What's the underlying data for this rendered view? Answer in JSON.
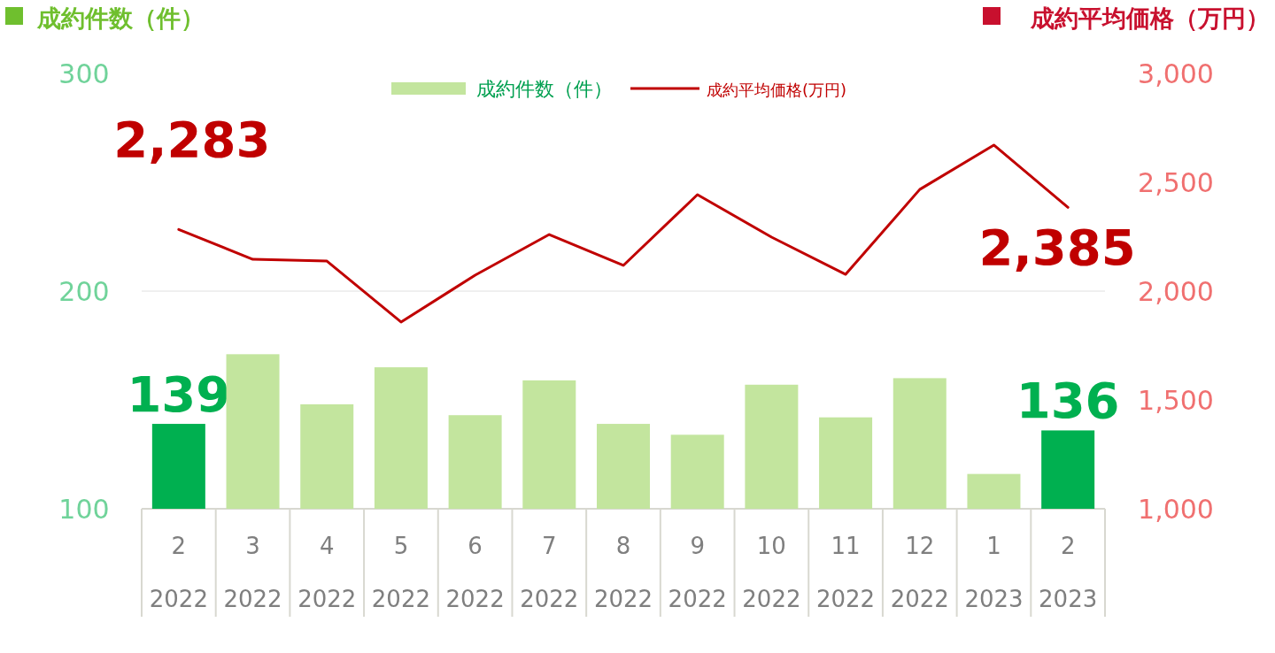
{
  "chart_data": {
    "type": "bar",
    "ylabel": "成約件数（件）",
    "y2label": "成約平均価格（万円）",
    "categories": [
      "2\n2022",
      "3\n2022",
      "4\n2022",
      "5\n2022",
      "6\n2022",
      "7\n2022",
      "8\n2022",
      "9\n2022",
      "10\n2022",
      "11\n2022",
      "12\n2022",
      "1\n2023",
      "2\n2023"
    ],
    "series": [
      {
        "name": "成約件数（件）",
        "color": "#c3e59e",
        "colors": [
          "#00b050",
          "#c3e59e",
          "#c3e59e",
          "#c3e59e",
          "#c3e59e",
          "#c3e59e",
          "#c3e59e",
          "#c3e59e",
          "#c3e59e",
          "#c3e59e",
          "#c3e59e",
          "#c3e59e",
          "#00b050"
        ],
        "values": [
          139,
          171,
          148,
          165,
          143,
          159,
          139,
          134,
          157,
          142,
          160,
          116,
          136
        ],
        "value_labels": [
          "139",
          null,
          null,
          null,
          null,
          null,
          null,
          null,
          null,
          null,
          null,
          null,
          "136"
        ]
      },
      {
        "name": "成約平均価格(万円)",
        "type": "line",
        "axis": "y2",
        "color": "#c00000",
        "values": [
          2283,
          2146,
          2138,
          1858,
          2073,
          2260,
          2118,
          2443,
          2248,
          2077,
          2467,
          2671,
          2385
        ],
        "value_labels": [
          "2,283",
          null,
          null,
          null,
          null,
          null,
          null,
          null,
          null,
          null,
          null,
          null,
          "2,385"
        ]
      }
    ],
    "ylim": [
      100,
      300
    ],
    "yticks": [
      100,
      200,
      300
    ],
    "y2lim": [
      1000,
      3000
    ],
    "y2ticks": [
      {
        "value": 1000,
        "label": "1,000"
      },
      {
        "value": 1500,
        "label": "1,500"
      },
      {
        "value": 2000,
        "label": "2,000"
      },
      {
        "value": 2500,
        "label": "2,500"
      },
      {
        "value": 3000,
        "label": "3,000"
      }
    ],
    "grid": "y",
    "legend": "top",
    "marker": "none",
    "line_style": "solid"
  }
}
